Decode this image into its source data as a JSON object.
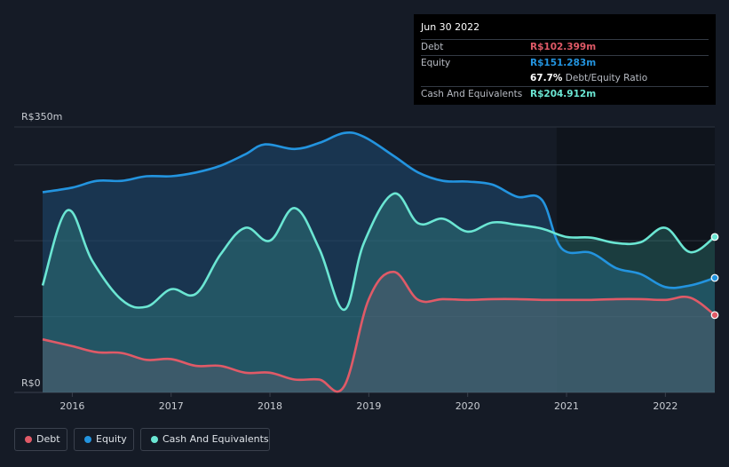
{
  "tooltip": {
    "date": "Jun 30 2022",
    "debt_label": "Debt",
    "debt_value": "R$102.399m",
    "equity_label": "Equity",
    "equity_value": "R$151.283m",
    "ratio_value": "67.7%",
    "ratio_label": "Debt/Equity Ratio",
    "cash_label": "Cash And Equivalents",
    "cash_value": "R$204.912m"
  },
  "legend": {
    "debt": "Debt",
    "equity": "Equity",
    "cash": "Cash And Equivalents"
  },
  "colors": {
    "debt": "#e05a67",
    "equity": "#2394df",
    "cash": "#6be6d3",
    "background": "#151b26",
    "grid": "#2d3440"
  },
  "chart_data": {
    "type": "area",
    "title": "",
    "ylim": [
      0,
      350
    ],
    "xlim": [
      2015.7,
      2022.5
    ],
    "y_tick_labels": [
      {
        "value": 350,
        "label": "R$350m"
      },
      {
        "value": 0,
        "label": "R$0"
      }
    ],
    "x_ticks": [
      2016,
      2017,
      2018,
      2019,
      2020,
      2021,
      2022
    ],
    "x_tick_labels": [
      "2016",
      "2017",
      "2018",
      "2019",
      "2020",
      "2021",
      "2022"
    ],
    "forecast_shade_start": 2020.9,
    "series": [
      {
        "name": "Equity",
        "points": [
          [
            2015.7,
            264
          ],
          [
            2016.0,
            270
          ],
          [
            2016.25,
            279
          ],
          [
            2016.5,
            279
          ],
          [
            2016.75,
            285
          ],
          [
            2017.0,
            285
          ],
          [
            2017.25,
            290
          ],
          [
            2017.5,
            299
          ],
          [
            2017.75,
            314
          ],
          [
            2017.95,
            327
          ],
          [
            2018.25,
            321
          ],
          [
            2018.5,
            329
          ],
          [
            2018.75,
            342
          ],
          [
            2018.95,
            337
          ],
          [
            2019.25,
            312
          ],
          [
            2019.5,
            290
          ],
          [
            2019.75,
            279
          ],
          [
            2020.0,
            278
          ],
          [
            2020.25,
            274
          ],
          [
            2020.5,
            258
          ],
          [
            2020.75,
            254
          ],
          [
            2020.95,
            190
          ],
          [
            2021.25,
            184
          ],
          [
            2021.5,
            164
          ],
          [
            2021.75,
            156
          ],
          [
            2022.0,
            139
          ],
          [
            2022.25,
            141
          ],
          [
            2022.5,
            151
          ]
        ]
      },
      {
        "name": "Cash And Equivalents",
        "points": [
          [
            2015.7,
            141
          ],
          [
            2015.95,
            240
          ],
          [
            2016.2,
            174
          ],
          [
            2016.5,
            122
          ],
          [
            2016.75,
            113
          ],
          [
            2017.0,
            136
          ],
          [
            2017.25,
            130
          ],
          [
            2017.5,
            182
          ],
          [
            2017.75,
            217
          ],
          [
            2018.0,
            200
          ],
          [
            2018.25,
            243
          ],
          [
            2018.5,
            189
          ],
          [
            2018.75,
            109
          ],
          [
            2018.95,
            197
          ],
          [
            2019.25,
            262
          ],
          [
            2019.5,
            223
          ],
          [
            2019.75,
            229
          ],
          [
            2020.0,
            212
          ],
          [
            2020.25,
            224
          ],
          [
            2020.5,
            221
          ],
          [
            2020.75,
            216
          ],
          [
            2021.0,
            205
          ],
          [
            2021.25,
            204
          ],
          [
            2021.5,
            197
          ],
          [
            2021.75,
            198
          ],
          [
            2022.0,
            217
          ],
          [
            2022.25,
            185
          ],
          [
            2022.5,
            205
          ]
        ]
      },
      {
        "name": "Debt",
        "points": [
          [
            2015.7,
            70
          ],
          [
            2016.0,
            61
          ],
          [
            2016.25,
            53
          ],
          [
            2016.5,
            52
          ],
          [
            2016.75,
            43
          ],
          [
            2017.0,
            44
          ],
          [
            2017.25,
            35
          ],
          [
            2017.5,
            35
          ],
          [
            2017.75,
            26
          ],
          [
            2018.0,
            26
          ],
          [
            2018.25,
            17
          ],
          [
            2018.5,
            17
          ],
          [
            2018.75,
            8
          ],
          [
            2019.0,
            123
          ],
          [
            2019.25,
            159
          ],
          [
            2019.5,
            122
          ],
          [
            2019.75,
            123
          ],
          [
            2020.0,
            122
          ],
          [
            2020.25,
            123
          ],
          [
            2020.5,
            123
          ],
          [
            2020.75,
            122
          ],
          [
            2021.0,
            122
          ],
          [
            2021.25,
            122
          ],
          [
            2021.5,
            123
          ],
          [
            2021.75,
            123
          ],
          [
            2022.0,
            122
          ],
          [
            2022.25,
            125
          ],
          [
            2022.5,
            102
          ]
        ]
      }
    ]
  }
}
